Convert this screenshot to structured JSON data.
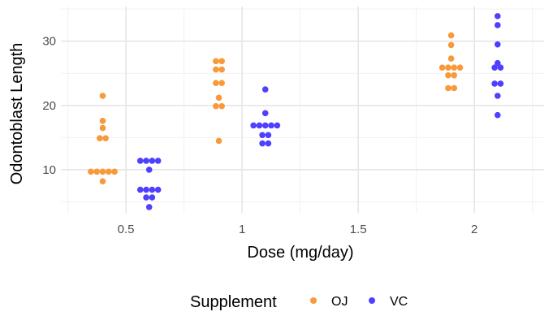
{
  "chart_data": {
    "type": "scatter",
    "subtype": "dotplot",
    "xlabel": "Dose (mg/day)",
    "ylabel": "Odontoblast Length",
    "xlim": [
      0.22,
      2.3
    ],
    "ylim": [
      3.3,
      35.4
    ],
    "x_ticks": [
      0.5,
      1,
      1.5,
      2
    ],
    "x_tick_labels": [
      "0.5",
      "1",
      "1.5",
      "2"
    ],
    "y_ticks": [
      10,
      20,
      30
    ],
    "y_tick_labels": [
      "10",
      "20",
      "30"
    ],
    "grid": true,
    "legend": {
      "title": "Supplement",
      "position": "bottom"
    },
    "series": [
      {
        "name": "OJ",
        "color": "#F8993A",
        "points": [
          {
            "x": 0.4,
            "y": 8.2
          },
          {
            "x": 0.4,
            "y": 9.7
          },
          {
            "x": 0.4,
            "y": 9.7
          },
          {
            "x": 0.4,
            "y": 9.7
          },
          {
            "x": 0.4,
            "y": 9.7
          },
          {
            "x": 0.4,
            "y": 9.7
          },
          {
            "x": 0.4,
            "y": 14.9
          },
          {
            "x": 0.4,
            "y": 14.9
          },
          {
            "x": 0.4,
            "y": 16.5
          },
          {
            "x": 0.4,
            "y": 17.6
          },
          {
            "x": 0.4,
            "y": 21.5
          },
          {
            "x": 0.9,
            "y": 14.5
          },
          {
            "x": 0.9,
            "y": 19.9
          },
          {
            "x": 0.9,
            "y": 19.9
          },
          {
            "x": 0.9,
            "y": 21.2
          },
          {
            "x": 0.9,
            "y": 23.5
          },
          {
            "x": 0.9,
            "y": 23.5
          },
          {
            "x": 0.9,
            "y": 25.6
          },
          {
            "x": 0.9,
            "y": 25.6
          },
          {
            "x": 0.9,
            "y": 26.9
          },
          {
            "x": 0.9,
            "y": 26.9
          },
          {
            "x": 1.9,
            "y": 22.7
          },
          {
            "x": 1.9,
            "y": 22.7
          },
          {
            "x": 1.9,
            "y": 24.7
          },
          {
            "x": 1.9,
            "y": 24.7
          },
          {
            "x": 1.9,
            "y": 25.9
          },
          {
            "x": 1.9,
            "y": 25.9
          },
          {
            "x": 1.9,
            "y": 25.9
          },
          {
            "x": 1.9,
            "y": 25.9
          },
          {
            "x": 1.9,
            "y": 27.3
          },
          {
            "x": 1.9,
            "y": 29.4
          },
          {
            "x": 1.9,
            "y": 30.9
          }
        ]
      },
      {
        "name": "VC",
        "color": "#4F40FF",
        "points": [
          {
            "x": 0.6,
            "y": 4.2
          },
          {
            "x": 0.6,
            "y": 5.7
          },
          {
            "x": 0.6,
            "y": 5.7
          },
          {
            "x": 0.6,
            "y": 6.9
          },
          {
            "x": 0.6,
            "y": 6.9
          },
          {
            "x": 0.6,
            "y": 6.9
          },
          {
            "x": 0.6,
            "y": 6.9
          },
          {
            "x": 0.6,
            "y": 10.0
          },
          {
            "x": 0.6,
            "y": 11.4
          },
          {
            "x": 0.6,
            "y": 11.4
          },
          {
            "x": 0.6,
            "y": 11.4
          },
          {
            "x": 0.6,
            "y": 11.4
          },
          {
            "x": 1.1,
            "y": 14.1
          },
          {
            "x": 1.1,
            "y": 14.1
          },
          {
            "x": 1.1,
            "y": 15.4
          },
          {
            "x": 1.1,
            "y": 15.4
          },
          {
            "x": 1.1,
            "y": 16.9
          },
          {
            "x": 1.1,
            "y": 16.9
          },
          {
            "x": 1.1,
            "y": 16.9
          },
          {
            "x": 1.1,
            "y": 16.9
          },
          {
            "x": 1.1,
            "y": 16.9
          },
          {
            "x": 1.1,
            "y": 18.8
          },
          {
            "x": 1.1,
            "y": 22.5
          },
          {
            "x": 2.1,
            "y": 18.5
          },
          {
            "x": 2.1,
            "y": 21.5
          },
          {
            "x": 2.1,
            "y": 23.4
          },
          {
            "x": 2.1,
            "y": 23.4
          },
          {
            "x": 2.1,
            "y": 25.9
          },
          {
            "x": 2.1,
            "y": 25.9
          },
          {
            "x": 2.1,
            "y": 26.6
          },
          {
            "x": 2.1,
            "y": 29.5
          },
          {
            "x": 2.1,
            "y": 32.5
          },
          {
            "x": 2.1,
            "y": 33.9
          }
        ]
      }
    ]
  }
}
